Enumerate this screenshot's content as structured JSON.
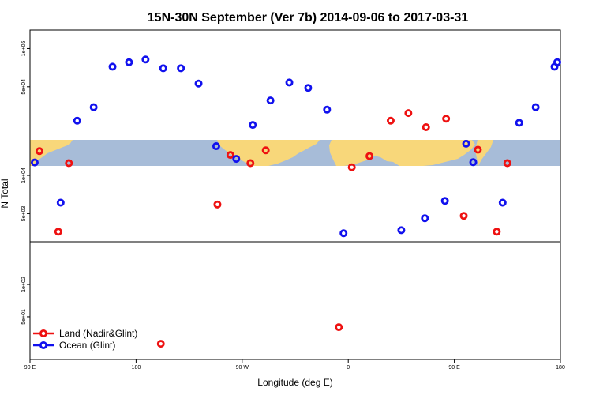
{
  "chart_data": {
    "type": "scatter",
    "title": "15N-30N September (Ver 7b)   2014-09-06 to 2017-03-31",
    "xlabel": "Longitude (deg E)",
    "ylabel": "N Total",
    "x_ticks": [
      {
        "value": 90,
        "label": "90 E"
      },
      {
        "value": 180,
        "label": "180"
      },
      {
        "value": 270,
        "label": "90 W"
      },
      {
        "value": 360,
        "label": "0"
      },
      {
        "value": 450,
        "label": "90 E"
      },
      {
        "value": 540,
        "label": "180"
      }
    ],
    "xlim": [
      90,
      540
    ],
    "upper_panel": {
      "scale": "log",
      "ylim": [
        3000,
        140000
      ],
      "y_ticks": [
        {
          "value": 5000,
          "label": "5e+03"
        },
        {
          "value": 10000,
          "label": "1e+04"
        },
        {
          "value": 50000,
          "label": "5e+04"
        },
        {
          "value": 100000,
          "label": "1e+05"
        }
      ]
    },
    "lower_panel": {
      "scale": "log",
      "ylim": [
        20,
        250
      ],
      "y_ticks": [
        {
          "value": 50,
          "label": "5e+01"
        },
        {
          "value": 100,
          "label": "1e+02"
        }
      ]
    },
    "legend_position": "bottom-left",
    "series": [
      {
        "name": "Land (Nadir&Glint)",
        "color": "#ee1111",
        "points": [
          {
            "x": 98,
            "y": 1750
          },
          {
            "x": 114,
            "y": 3600
          },
          {
            "x": 123,
            "y": 1350
          },
          {
            "x": 249,
            "y": 5900
          },
          {
            "x": 260,
            "y": 14500
          },
          {
            "x": 277,
            "y": 1350
          },
          {
            "x": 290,
            "y": 1780
          },
          {
            "x": 352,
            "y": 40
          },
          {
            "x": 363,
            "y": 11600
          },
          {
            "x": 378,
            "y": 14200
          },
          {
            "x": 396,
            "y": 27000
          },
          {
            "x": 411,
            "y": 31000
          },
          {
            "x": 426,
            "y": 24000
          },
          {
            "x": 443,
            "y": 28000
          },
          {
            "x": 458,
            "y": 4800
          },
          {
            "x": 470,
            "y": 1800
          },
          {
            "x": 486,
            "y": 3600
          },
          {
            "x": 495,
            "y": 1350
          },
          {
            "x": 201,
            "y": 28
          }
        ]
      },
      {
        "name": "Ocean (Glint)",
        "color": "#1111ee",
        "points": [
          {
            "x": 94,
            "y": 1370
          },
          {
            "x": 116,
            "y": 6100
          },
          {
            "x": 130,
            "y": 27000
          },
          {
            "x": 144,
            "y": 34500
          },
          {
            "x": 160,
            "y": 72000
          },
          {
            "x": 174,
            "y": 78000
          },
          {
            "x": 188,
            "y": 82000
          },
          {
            "x": 203,
            "y": 70000
          },
          {
            "x": 218,
            "y": 70000
          },
          {
            "x": 233,
            "y": 53000
          },
          {
            "x": 248,
            "y": 17000
          },
          {
            "x": 265,
            "y": 13500
          },
          {
            "x": 279,
            "y": 25000
          },
          {
            "x": 294,
            "y": 39000
          },
          {
            "x": 310,
            "y": 54000
          },
          {
            "x": 326,
            "y": 49000
          },
          {
            "x": 342,
            "y": 33000
          },
          {
            "x": 356,
            "y": 3500
          },
          {
            "x": 405,
            "y": 3700
          },
          {
            "x": 425,
            "y": 4600
          },
          {
            "x": 442,
            "y": 6300
          },
          {
            "x": 460,
            "y": 2050
          },
          {
            "x": 466,
            "y": 1380
          },
          {
            "x": 491,
            "y": 6100
          },
          {
            "x": 505,
            "y": 26000
          },
          {
            "x": 519,
            "y": 34500
          },
          {
            "x": 535,
            "y": 72000
          },
          {
            "x": 550,
            "y": 78000
          }
        ]
      }
    ]
  }
}
